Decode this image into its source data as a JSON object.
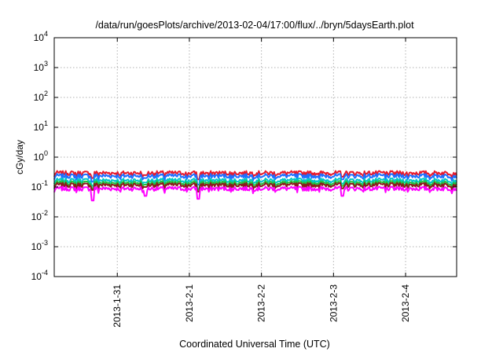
{
  "chart_data": {
    "type": "line",
    "title": "/data/run/goesPlots/archive/2013-02-04/17:00/flux/../bryn/5daysEarth.plot",
    "xlabel": "Coordinated Universal Time (UTC)",
    "ylabel": "cGy/day",
    "yscale": "log",
    "ylim": [
      0.0001,
      10000
    ],
    "yticks": [
      {
        "base": "10",
        "exp": "4",
        "value": 10000
      },
      {
        "base": "10",
        "exp": "3",
        "value": 1000
      },
      {
        "base": "10",
        "exp": "2",
        "value": 100
      },
      {
        "base": "10",
        "exp": "1",
        "value": 10
      },
      {
        "base": "10",
        "exp": "0",
        "value": 1
      },
      {
        "base": "10",
        "exp": "-1",
        "value": 0.1
      },
      {
        "base": "10",
        "exp": "-2",
        "value": 0.01
      },
      {
        "base": "10",
        "exp": "-3",
        "value": 0.001
      },
      {
        "base": "10",
        "exp": "-4",
        "value": 0.0001
      }
    ],
    "xlim": [
      "2013-01-30 03:00",
      "2013-02-04 17:00"
    ],
    "xticks": [
      "2013-1-31",
      "2013-2-1",
      "2013-2-2",
      "2013-2-3",
      "2013-2-4"
    ],
    "grid": true,
    "series": [
      {
        "color": "#e8192c",
        "level": 0.3,
        "dips": [
          0.2,
          0.25,
          0.18,
          0.22
        ]
      },
      {
        "color": "#1e6fff",
        "level": 0.24,
        "dips": [
          0.15,
          0.2,
          0.12,
          0.18
        ]
      },
      {
        "color": "#00c8c8",
        "level": 0.17,
        "dips": [
          0.11,
          0.14,
          0.09,
          0.13
        ]
      },
      {
        "color": "#22c040",
        "level": 0.14,
        "dips": [
          0.09,
          0.12,
          0.08,
          0.11
        ]
      },
      {
        "color": "#8b1a1a",
        "level": 0.12,
        "dips": [
          0.08,
          0.1,
          0.07,
          0.09
        ]
      },
      {
        "color": "#ff00ff",
        "level": 0.09,
        "dips": [
          0.035,
          0.05,
          0.04,
          0.05
        ]
      }
    ]
  }
}
